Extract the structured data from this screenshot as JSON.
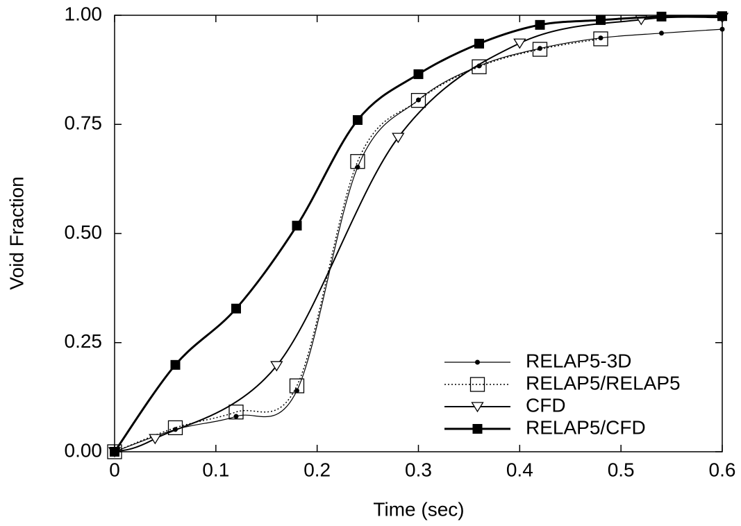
{
  "chart_data": {
    "type": "line",
    "x_label": "Time (sec)",
    "y_label": "Void Fraction",
    "xlim": [
      0,
      0.6
    ],
    "ylim": [
      0,
      1
    ],
    "xticks": [
      0,
      0.1,
      0.2,
      0.3,
      0.4,
      0.5,
      0.6
    ],
    "yticks": [
      {
        "value": 0,
        "label": "0.00"
      },
      {
        "value": 0.25,
        "label": "0.25"
      },
      {
        "value": 0.5,
        "label": "0.50"
      },
      {
        "value": 0.75,
        "label": "0.75"
      },
      {
        "value": 1,
        "label": "1.00"
      }
    ],
    "legend_position": "lower-right",
    "series": [
      {
        "name": "RELAP5-3D",
        "color": "#000000",
        "marker": "dot",
        "dash": "solid",
        "line_width": 1.2,
        "x": [
          0,
          0.06,
          0.12,
          0.18,
          0.24,
          0.3,
          0.36,
          0.42,
          0.48,
          0.54,
          0.6
        ],
        "values": [
          0,
          0.051,
          0.081,
          0.14,
          0.652,
          0.806,
          0.884,
          0.924,
          0.948,
          0.959,
          0.968
        ]
      },
      {
        "name": "RELAP5/RELAP5",
        "color": "#000000",
        "marker": "square-open",
        "dash": "dotted",
        "line_width": 1.5,
        "x": [
          0,
          0.06,
          0.12,
          0.18,
          0.24,
          0.3,
          0.36,
          0.42,
          0.48
        ],
        "values": [
          0,
          0.055,
          0.091,
          0.151,
          0.665,
          0.805,
          0.882,
          0.922,
          0.946
        ]
      },
      {
        "name": "CFD",
        "color": "#000000",
        "marker": "triangle-open",
        "dash": "solid",
        "line_width": 2,
        "x": [
          0,
          0.04,
          0.16,
          0.28,
          0.4,
          0.52,
          0.6
        ],
        "values": [
          0,
          0.03,
          0.197,
          0.72,
          0.936,
          0.99,
          0.995
        ]
      },
      {
        "name": "RELAP5/CFD",
        "color": "#000000",
        "marker": "square-filled",
        "dash": "solid",
        "line_width": 3,
        "x": [
          0,
          0.06,
          0.12,
          0.18,
          0.24,
          0.3,
          0.36,
          0.42,
          0.48,
          0.54,
          0.6
        ],
        "values": [
          0,
          0.199,
          0.328,
          0.518,
          0.76,
          0.865,
          0.935,
          0.978,
          0.989,
          0.997,
          0.998
        ]
      }
    ]
  }
}
